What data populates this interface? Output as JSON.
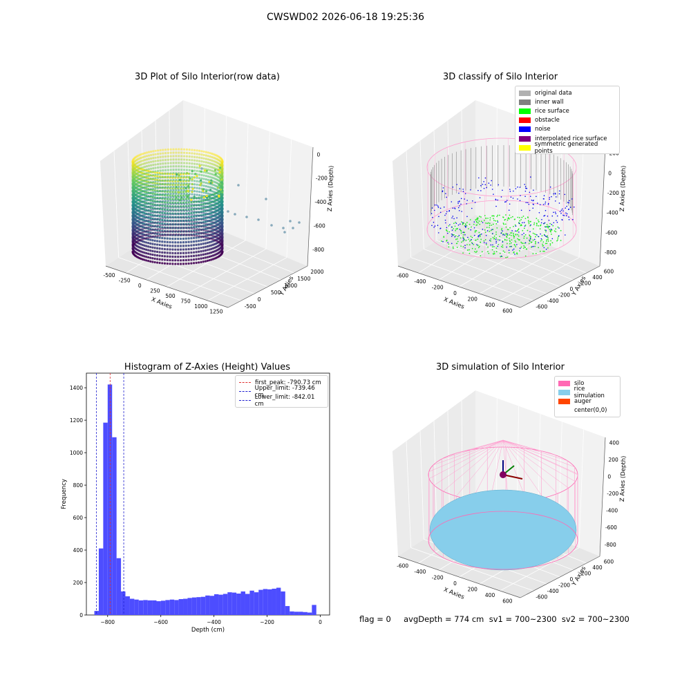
{
  "suptitle": "CWSWD02 2026-06-18 19:25:36",
  "footer": {
    "text": "flag = 0     avgDepth = 774 cm  sv1 = 700~2300  sv2 = 700~2300"
  },
  "colors": {
    "viridis_low": "#440154",
    "viridis_mid": "#21918c",
    "viridis_high": "#fde725",
    "hist_bar": "#4d4dff",
    "peak_line": "#e03030",
    "limit_line": "#2020d0",
    "silo_pink": "#ff69b4",
    "rice_blue": "#87ceeb",
    "auger": "#ff4500"
  },
  "chart_data": [
    {
      "type": "scatter",
      "projection": "3d",
      "title": "3D Plot of Silo Interior(row data)",
      "xlabel": "X Axies",
      "ylabel": "Y Axies",
      "zlabel": "Z Axies (Depth)",
      "xticks": [
        "-500",
        "-250",
        "0",
        "250",
        "500",
        "750",
        "1000",
        "1250"
      ],
      "yticks": [
        "-500",
        "0",
        "500",
        "1000",
        "1500",
        "2000"
      ],
      "zticks": [
        "0",
        "-200",
        "-400",
        "-600",
        "-800"
      ],
      "colormap": "viridis",
      "description": "cylindrical ring of point columns colored by depth"
    },
    {
      "type": "scatter",
      "projection": "3d",
      "title": "3D classify of Silo Interior",
      "xlabel": "X Axies",
      "ylabel": "Y Axies",
      "zlabel": "Z Axies (Depth)",
      "xticks": [
        "-600",
        "-400",
        "-200",
        "0",
        "200",
        "400",
        "600"
      ],
      "yticks": [
        "-600",
        "-400",
        "-200",
        "0",
        "200",
        "400",
        "600"
      ],
      "zticks": [
        "200",
        "0",
        "-200",
        "-400",
        "-600",
        "-800"
      ],
      "legend": [
        {
          "label": "original data",
          "color": "#b0b0b0"
        },
        {
          "label": "inner wall",
          "color": "#808080"
        },
        {
          "label": "rice surface",
          "color": "#00ff00"
        },
        {
          "label": "obstacle",
          "color": "#ff0000"
        },
        {
          "label": "noise",
          "color": "#0000ff"
        },
        {
          "label": "interpolated rice surface",
          "color": "#800080"
        },
        {
          "label": "symmetric generated points",
          "color": "#ffff00"
        }
      ],
      "legend_loc": "upper right"
    },
    {
      "type": "bar",
      "title": "Histogram of Z-Axies (Height) Values",
      "xlabel": "Depth (cm)",
      "ylabel": "Frequency",
      "xlim": [
        -880,
        35
      ],
      "ylim": [
        0,
        1490
      ],
      "xticks": [
        -800,
        -600,
        -400,
        -200,
        0
      ],
      "yticks": [
        0,
        200,
        400,
        600,
        800,
        1000,
        1200,
        1400
      ],
      "bin_width": 16.7,
      "bins_start": [
        -850,
        -833.3,
        -816.6,
        -799.9,
        -783.2,
        -766.5,
        -749.8,
        -733.1,
        -716.4,
        -699.7,
        -683,
        -666.3,
        -649.6,
        -632.9,
        -616.2,
        -599.5,
        -582.8,
        -566.1,
        -549.4,
        -532.7,
        -516,
        -499.3,
        -482.6,
        -465.9,
        -449.2,
        -432.5,
        -415.8,
        -399.1,
        -382.4,
        -365.7,
        -349,
        -332.3,
        -315.6,
        -298.9,
        -282.2,
        -265.5,
        -248.8,
        -232.1,
        -215.4,
        -198.7,
        -182,
        -165.3,
        -148.6,
        -131.9,
        -115.2,
        -98.5,
        -81.8,
        -65.1,
        -48.4,
        -31.7,
        -15
      ],
      "values": [
        25,
        410,
        1185,
        1420,
        1095,
        350,
        145,
        115,
        100,
        95,
        90,
        92,
        90,
        90,
        85,
        88,
        92,
        95,
        92,
        98,
        100,
        105,
        108,
        110,
        112,
        120,
        118,
        128,
        125,
        130,
        140,
        138,
        132,
        145,
        130,
        150,
        140,
        155,
        160,
        158,
        162,
        168,
        145,
        55,
        22,
        20,
        20,
        18,
        15,
        62,
        0
      ],
      "series": [
        {
          "name": "first_peak: -790.73 cm",
          "value": -790.73,
          "color": "#e03030",
          "style": "dashed"
        },
        {
          "name": "Upper_limit: -739.46 cm",
          "value": -739.46,
          "color": "#2020d0",
          "style": "dashed"
        },
        {
          "name": "Lower_limit: -842.01 cm",
          "value": -842.01,
          "color": "#2020d0",
          "style": "dashed"
        }
      ],
      "legend_loc": "upper right",
      "grid": false
    },
    {
      "type": "scatter",
      "projection": "3d",
      "title": "3D simulation of Silo Interior",
      "xlabel": "X Axies",
      "ylabel": "Y Axies",
      "zlabel": "Z Axies (Depth)",
      "xticks": [
        "-600",
        "-400",
        "-200",
        "0",
        "200",
        "400",
        "600"
      ],
      "yticks": [
        "-600",
        "-400",
        "-200",
        "0",
        "200",
        "400",
        "600"
      ],
      "zticks": [
        "400",
        "200",
        "0",
        "-200",
        "-400",
        "-600",
        "-800"
      ],
      "legend": [
        {
          "label": "silo",
          "color": "#ff69b4"
        },
        {
          "label": "rice simulation",
          "color": "#87ceeb"
        },
        {
          "label": "auger",
          "color": "#ff4500"
        },
        {
          "label": "center(0,0)",
          "color": ""
        }
      ],
      "legend_loc": "upper right"
    }
  ]
}
